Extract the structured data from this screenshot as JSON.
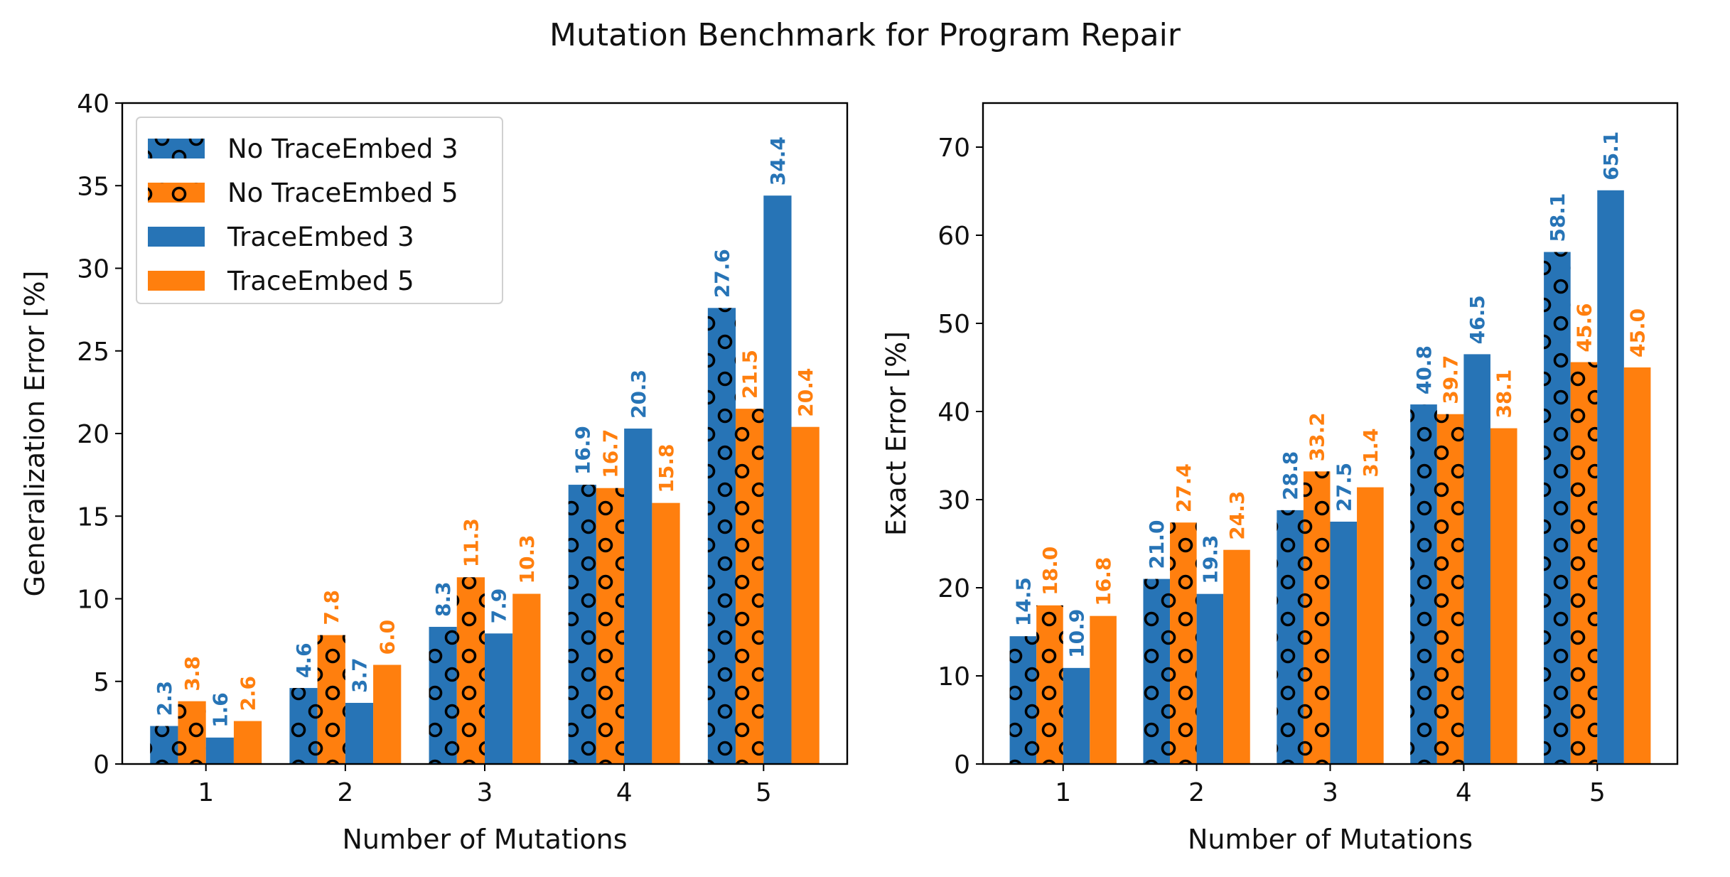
{
  "title": "Mutation Benchmark for Program Repair",
  "colors": {
    "blue": "#2774b6",
    "orange": "#ff7f0e"
  },
  "chart_data": [
    {
      "type": "bar",
      "xlabel": "Number of Mutations",
      "ylabel": "Generalization Error [%]",
      "categories": [
        "1",
        "2",
        "3",
        "4",
        "5"
      ],
      "ylim": [
        0,
        40
      ],
      "yticks": [
        0,
        5,
        10,
        15,
        20,
        25,
        30,
        35,
        40
      ],
      "legend": "upper-left",
      "grid": false,
      "series": [
        {
          "name": "No TraceEmbed 3",
          "color": "#2774b6",
          "hatch": "circles",
          "values": [
            2.3,
            4.6,
            8.3,
            16.9,
            27.6
          ],
          "labels": [
            "2.3",
            "4.6",
            "8.3",
            "16.9",
            "27.6"
          ]
        },
        {
          "name": "No TraceEmbed 5",
          "color": "#ff7f0e",
          "hatch": "circles",
          "values": [
            3.8,
            7.8,
            11.3,
            16.7,
            21.5
          ],
          "labels": [
            "3.8",
            "7.8",
            "11.3",
            "16.7",
            "21.5"
          ]
        },
        {
          "name": "TraceEmbed 3",
          "color": "#2774b6",
          "hatch": "none",
          "values": [
            1.6,
            3.7,
            7.9,
            20.3,
            34.4
          ],
          "labels": [
            "1.6",
            "3.7",
            "7.9",
            "20.3",
            "34.4"
          ]
        },
        {
          "name": "TraceEmbed 5",
          "color": "#ff7f0e",
          "hatch": "none",
          "values": [
            2.6,
            6.0,
            10.3,
            15.8,
            20.4
          ],
          "labels": [
            "2.6",
            "6.0",
            "10.3",
            "15.8",
            "20.4"
          ]
        }
      ]
    },
    {
      "type": "bar",
      "xlabel": "Number of Mutations",
      "ylabel": "Exact Error [%]",
      "categories": [
        "1",
        "2",
        "3",
        "4",
        "5"
      ],
      "ylim": [
        0,
        75
      ],
      "yticks": [
        0,
        10,
        20,
        30,
        40,
        50,
        60,
        70
      ],
      "grid": false,
      "series": [
        {
          "name": "No TraceEmbed 3",
          "color": "#2774b6",
          "hatch": "circles",
          "values": [
            14.5,
            21.0,
            28.8,
            40.8,
            58.1
          ],
          "labels": [
            "14.5",
            "21.0",
            "28.8",
            "40.8",
            "58.1"
          ]
        },
        {
          "name": "No TraceEmbed 5",
          "color": "#ff7f0e",
          "hatch": "circles",
          "values": [
            18.0,
            27.4,
            33.2,
            39.7,
            45.6
          ],
          "labels": [
            "18.0",
            "27.4",
            "33.2",
            "39.7",
            "45.6"
          ]
        },
        {
          "name": "TraceEmbed 3",
          "color": "#2774b6",
          "hatch": "none",
          "values": [
            10.9,
            19.3,
            27.5,
            46.5,
            65.1
          ],
          "labels": [
            "10.9",
            "19.3",
            "27.5",
            "46.5",
            "65.1"
          ]
        },
        {
          "name": "TraceEmbed 5",
          "color": "#ff7f0e",
          "hatch": "none",
          "values": [
            16.8,
            24.3,
            31.4,
            38.1,
            45.0
          ],
          "labels": [
            "16.8",
            "24.3",
            "31.4",
            "38.1",
            "45.0"
          ]
        }
      ]
    }
  ]
}
